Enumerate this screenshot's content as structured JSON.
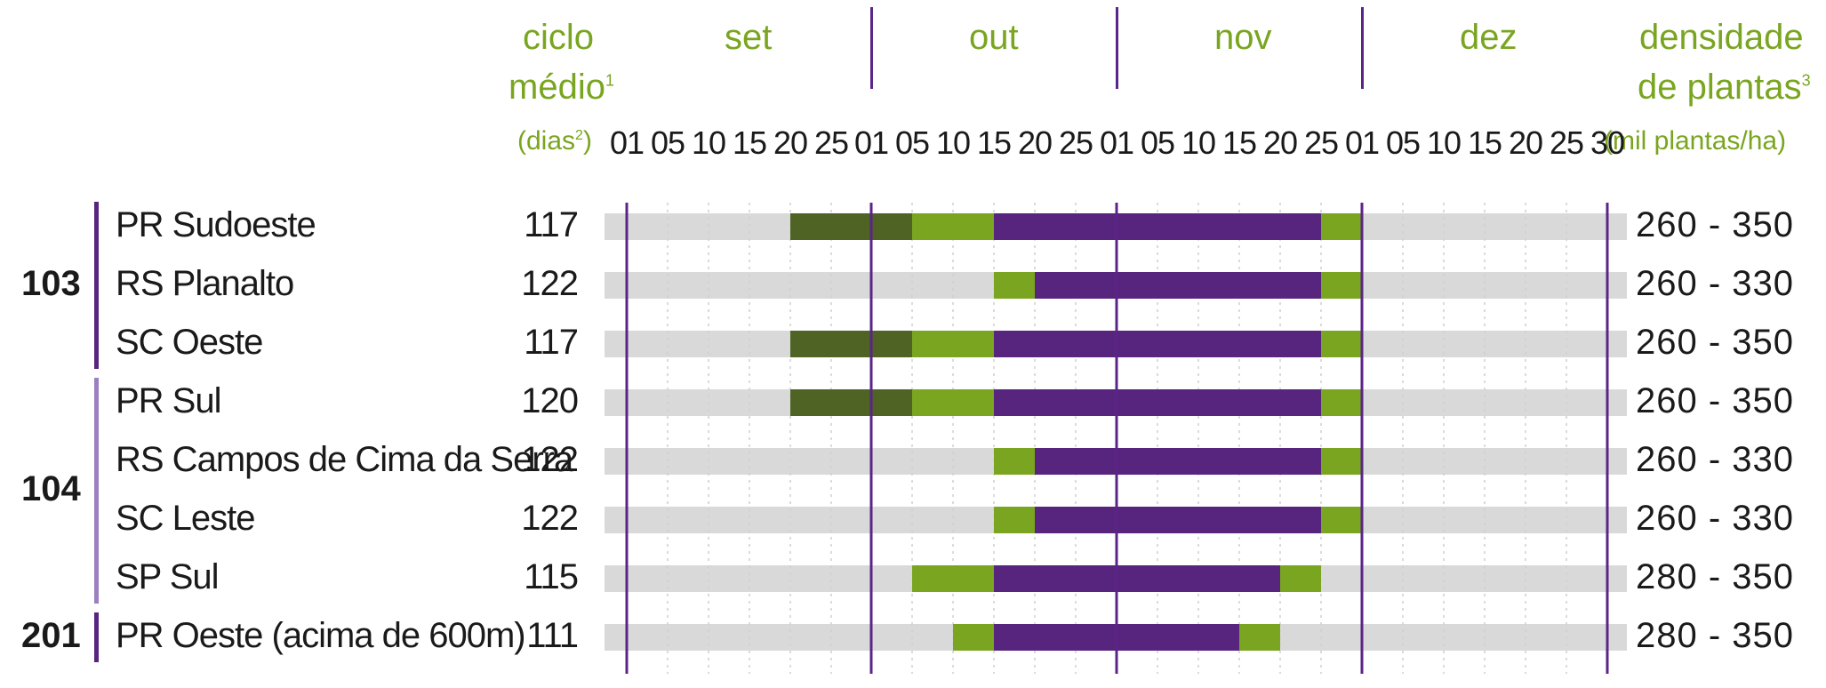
{
  "header": {
    "cycle_label_1": "ciclo",
    "cycle_label_2": "médio",
    "cycle_sup": "1",
    "cycle_label_3": "(dias",
    "cycle_sup2": "2",
    "cycle_label_3b": ")",
    "density_label_1": "densidade",
    "density_label_2": "de plantas",
    "density_sup": "3",
    "density_label_3": "(mil plantas/ha)"
  },
  "colors": {
    "background_bar": "#d9d9d9",
    "dark_green": "#4f6324",
    "light_green": "#7aa520",
    "purple": "#57247e",
    "divider": "#5b2587",
    "header_text": "#7aa520"
  },
  "chart_data": {
    "type": "gantt",
    "months": [
      "set",
      "out",
      "nov",
      "dez"
    ],
    "ticks": [
      "01",
      "05",
      "10",
      "15",
      "20",
      "25",
      "01",
      "05",
      "10",
      "15",
      "20",
      "25",
      "01",
      "05",
      "10",
      "15",
      "20",
      "25",
      "01",
      "05",
      "10",
      "15",
      "20",
      "25",
      "30"
    ],
    "groups": [
      {
        "label": "103",
        "color": "#57247e",
        "rows": [
          0,
          1,
          2
        ]
      },
      {
        "label": "104",
        "color": "#9b7fc0",
        "rows": [
          3,
          4,
          5,
          6
        ]
      },
      {
        "label": "201",
        "color": "#57247e",
        "rows": [
          7
        ]
      }
    ],
    "rows": [
      {
        "region": "PR Sudoeste",
        "cycle": "117",
        "density": "260 - 350",
        "segments": [
          {
            "from": "09-20",
            "to": "10-05",
            "kind": "dark_green"
          },
          {
            "from": "10-05",
            "to": "10-15",
            "kind": "light_green"
          },
          {
            "from": "10-15",
            "to": "11-25",
            "kind": "purple"
          },
          {
            "from": "11-25",
            "to": "12-01",
            "kind": "light_green"
          }
        ]
      },
      {
        "region": "RS Planalto",
        "cycle": "122",
        "density": "260 - 330",
        "segments": [
          {
            "from": "10-15",
            "to": "10-20",
            "kind": "light_green"
          },
          {
            "from": "10-20",
            "to": "11-25",
            "kind": "purple"
          },
          {
            "from": "11-25",
            "to": "12-01",
            "kind": "light_green"
          }
        ]
      },
      {
        "region": "SC Oeste",
        "cycle": "117",
        "density": "260 - 350",
        "segments": [
          {
            "from": "09-20",
            "to": "10-05",
            "kind": "dark_green"
          },
          {
            "from": "10-05",
            "to": "10-15",
            "kind": "light_green"
          },
          {
            "from": "10-15",
            "to": "11-25",
            "kind": "purple"
          },
          {
            "from": "11-25",
            "to": "12-01",
            "kind": "light_green"
          }
        ]
      },
      {
        "region": "PR Sul",
        "cycle": "120",
        "density": "260 - 350",
        "segments": [
          {
            "from": "09-20",
            "to": "10-05",
            "kind": "dark_green"
          },
          {
            "from": "10-05",
            "to": "10-15",
            "kind": "light_green"
          },
          {
            "from": "10-15",
            "to": "11-25",
            "kind": "purple"
          },
          {
            "from": "11-25",
            "to": "12-01",
            "kind": "light_green"
          }
        ]
      },
      {
        "region": "RS Campos de Cima da Serra",
        "cycle": "122",
        "density": "260 - 330",
        "segments": [
          {
            "from": "10-15",
            "to": "10-20",
            "kind": "light_green"
          },
          {
            "from": "10-20",
            "to": "11-25",
            "kind": "purple"
          },
          {
            "from": "11-25",
            "to": "12-01",
            "kind": "light_green"
          }
        ]
      },
      {
        "region": "SC Leste",
        "cycle": "122",
        "density": "260 - 330",
        "segments": [
          {
            "from": "10-15",
            "to": "10-20",
            "kind": "light_green"
          },
          {
            "from": "10-20",
            "to": "11-25",
            "kind": "purple"
          },
          {
            "from": "11-25",
            "to": "12-01",
            "kind": "light_green"
          }
        ]
      },
      {
        "region": "SP Sul",
        "cycle": "115",
        "density": "280 - 350",
        "segments": [
          {
            "from": "10-05",
            "to": "10-15",
            "kind": "light_green"
          },
          {
            "from": "10-15",
            "to": "11-20",
            "kind": "purple"
          },
          {
            "from": "11-20",
            "to": "11-25",
            "kind": "light_green"
          }
        ]
      },
      {
        "region": "PR Oeste (acima de 600m)",
        "cycle": "111",
        "density": "280 - 350",
        "segments": [
          {
            "from": "10-10",
            "to": "10-15",
            "kind": "light_green"
          },
          {
            "from": "10-15",
            "to": "11-15",
            "kind": "purple"
          },
          {
            "from": "11-15",
            "to": "11-20",
            "kind": "light_green"
          }
        ]
      }
    ]
  }
}
